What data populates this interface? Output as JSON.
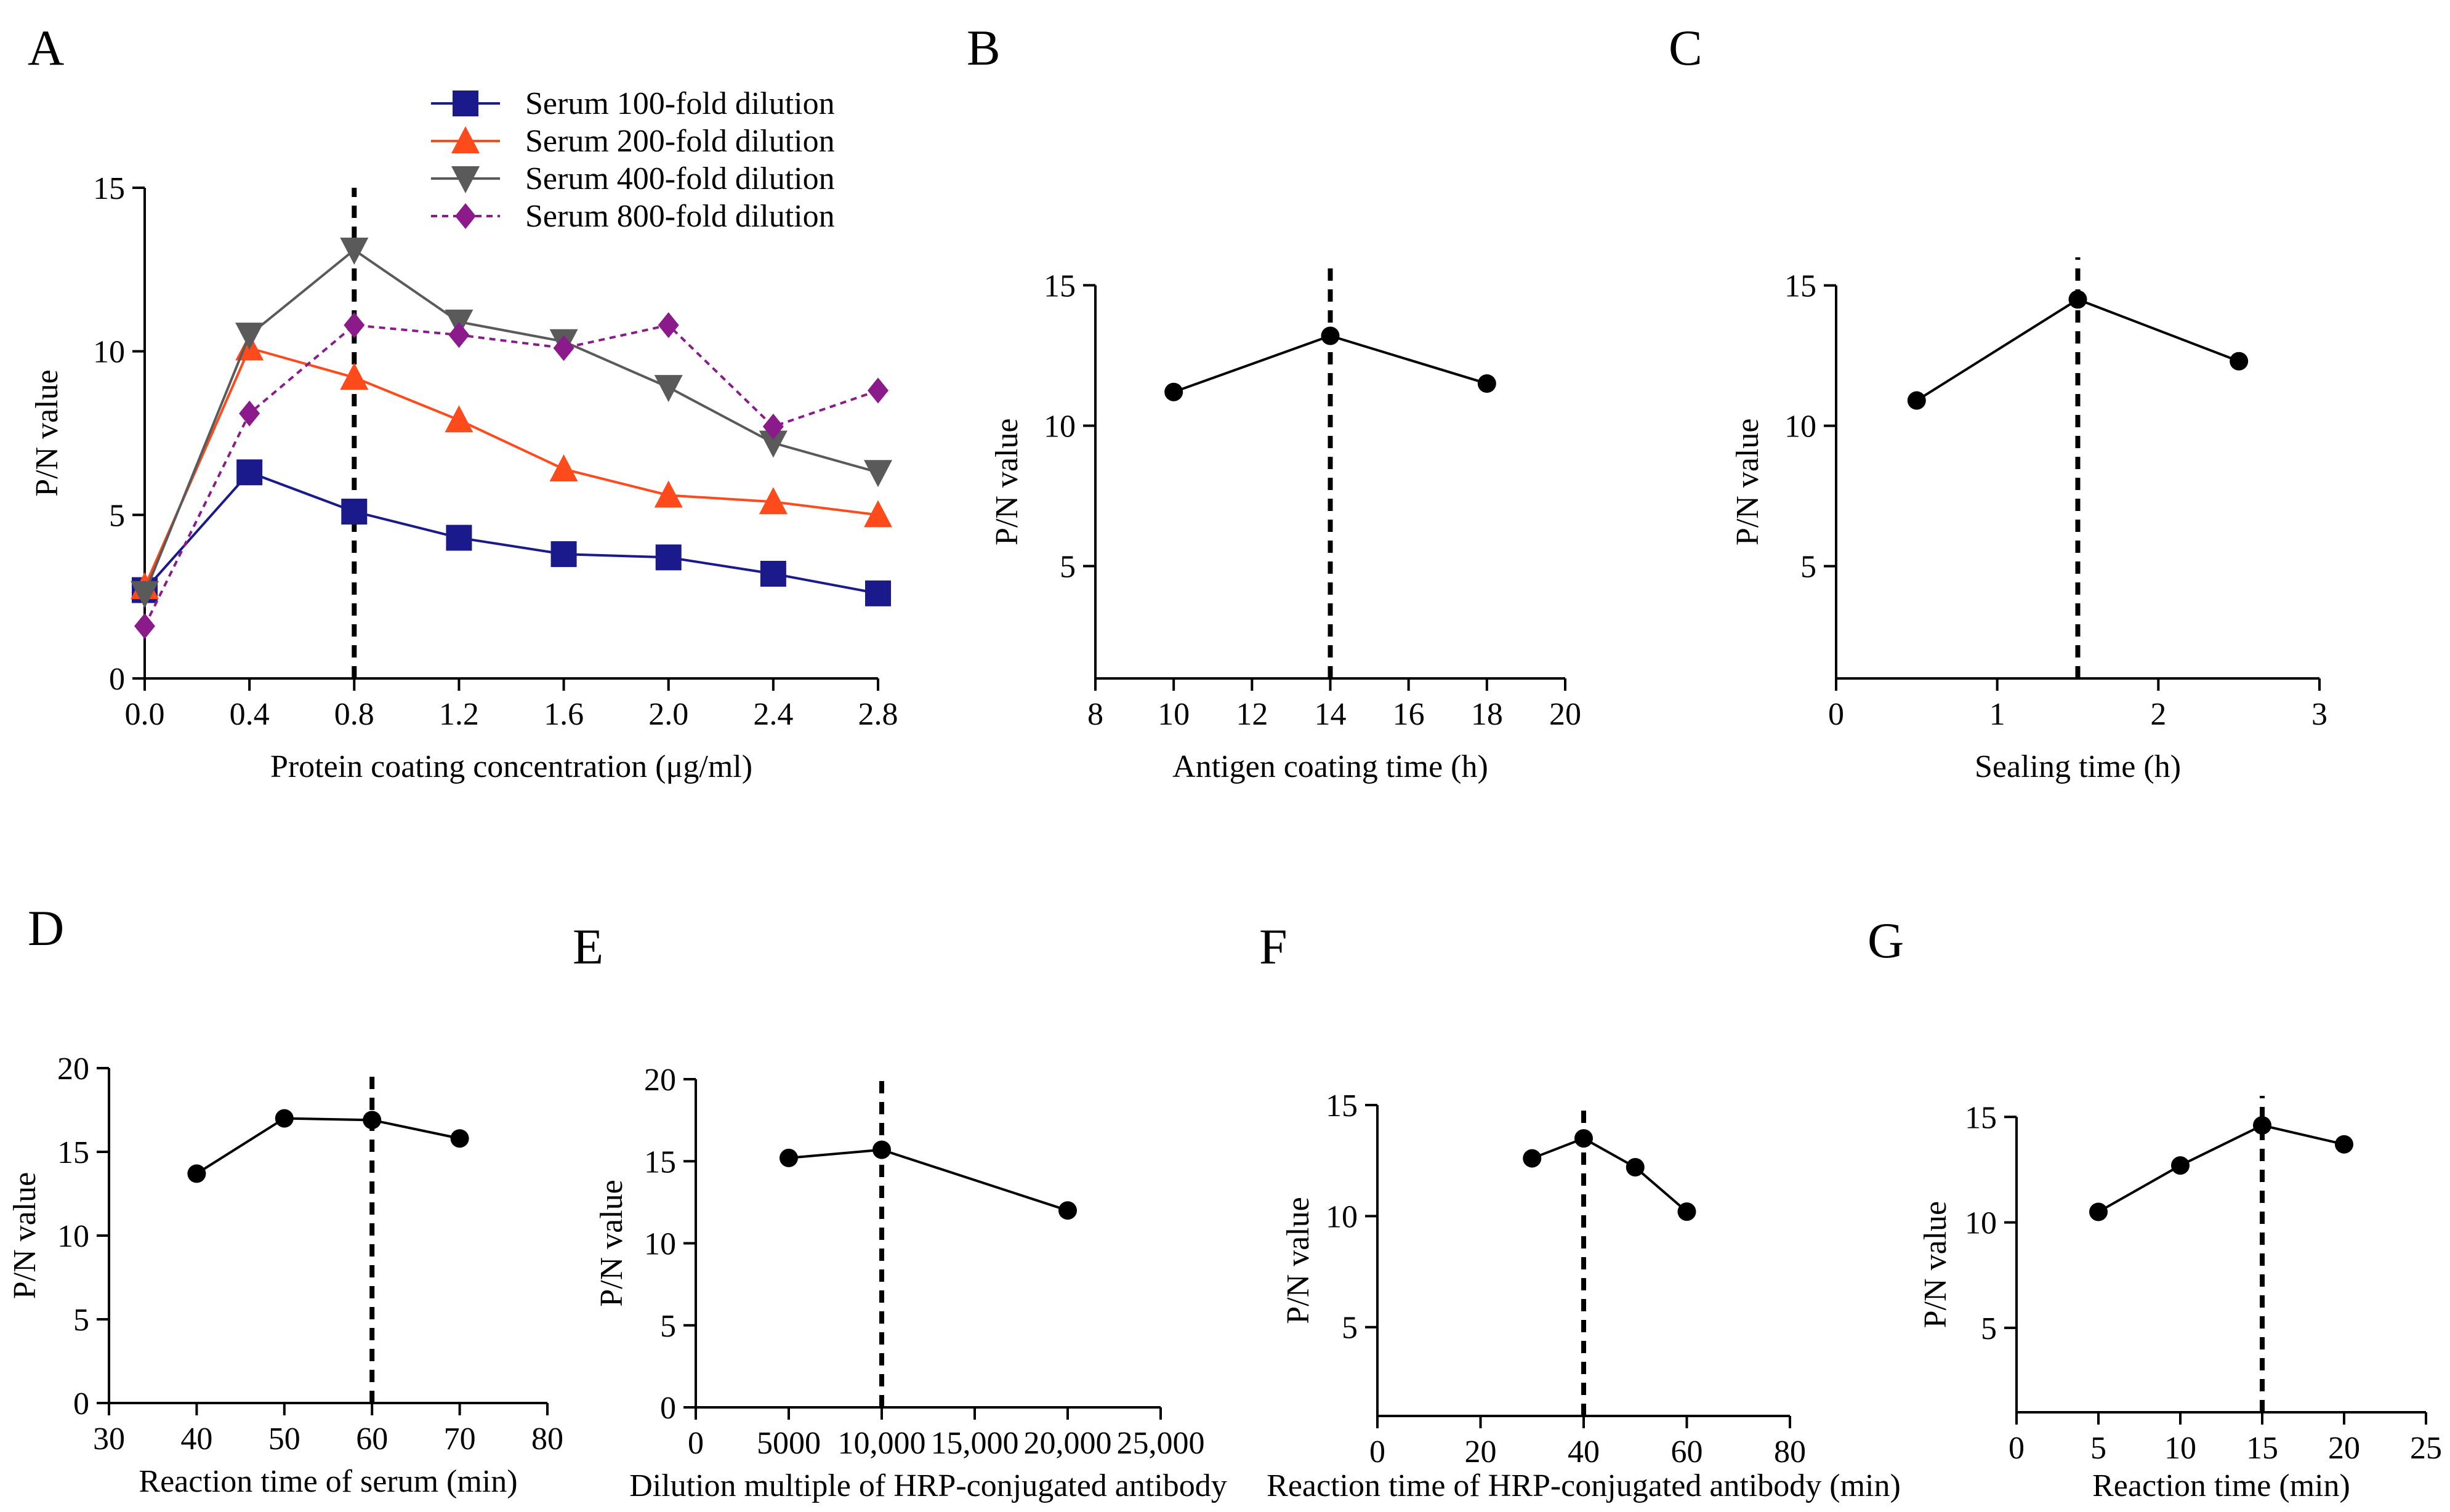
{
  "chart_data": [
    {
      "panel": "A",
      "type": "line",
      "xlabel": "Protein coating concentration (μg/ml)",
      "ylabel": "P/N value",
      "xlim": [
        0,
        2.8
      ],
      "ylim": [
        0,
        15
      ],
      "xticks": [
        0.0,
        0.4,
        0.8,
        1.2,
        1.6,
        2.0,
        2.4,
        2.8
      ],
      "xtick_labels": [
        "0.0",
        "0.4",
        "0.8",
        "1.2",
        "1.6",
        "2.0",
        "2.4",
        "2.8"
      ],
      "yticks": [
        0,
        5,
        10,
        15
      ],
      "ytick_labels": [
        "0",
        "5",
        "10",
        "15"
      ],
      "x": [
        0.0,
        0.4,
        0.8,
        1.2,
        1.6,
        2.0,
        2.4,
        2.8
      ],
      "series": [
        {
          "name": "Serum 100-fold dilution",
          "color": "#1a1a8c",
          "marker": "square",
          "dashed": false,
          "values": [
            2.7,
            6.3,
            5.1,
            4.3,
            3.8,
            3.7,
            3.2,
            2.6
          ]
        },
        {
          "name": "Serum 200-fold dilution",
          "color": "#ff4a1c",
          "marker": "triangle-up",
          "dashed": false,
          "values": [
            2.8,
            10.1,
            9.2,
            7.9,
            6.4,
            5.6,
            5.4,
            5.0
          ]
        },
        {
          "name": "Serum 400-fold dilution",
          "color": "#5a5a5a",
          "marker": "triangle-down",
          "dashed": false,
          "values": [
            2.6,
            10.5,
            13.1,
            10.9,
            10.3,
            8.9,
            7.2,
            6.3
          ]
        },
        {
          "name": "Serum 800-fold dilution",
          "color": "#8b1a8b",
          "marker": "diamond",
          "dashed": true,
          "values": [
            1.6,
            8.1,
            10.8,
            10.5,
            10.1,
            10.8,
            7.7,
            8.8
          ]
        }
      ],
      "vline_x": 0.8,
      "legend": "top"
    },
    {
      "panel": "B",
      "type": "line",
      "xlabel": "Antigen coating time (h)",
      "ylabel": "P/N  value",
      "xlim": [
        8,
        20
      ],
      "ylim": [
        1,
        15.6
      ],
      "xticks": [
        8,
        10,
        12,
        14,
        16,
        18,
        20
      ],
      "xtick_labels": [
        "8",
        "10",
        "12",
        "14",
        "16",
        "18",
        "20"
      ],
      "yticks": [
        5,
        10,
        15
      ],
      "ytick_labels": [
        "5",
        "10",
        "15"
      ],
      "x": [
        10,
        14,
        18
      ],
      "series": [
        {
          "name": "",
          "values": [
            11.2,
            13.2,
            11.5
          ]
        }
      ],
      "vline_x": 14
    },
    {
      "panel": "C",
      "type": "line",
      "xlabel": "Sealing time (h)",
      "ylabel": "P/N value",
      "xlim": [
        0,
        3
      ],
      "ylim": [
        1,
        16
      ],
      "xticks": [
        0,
        1,
        2,
        3
      ],
      "xtick_labels": [
        "0",
        "1",
        "2",
        "3"
      ],
      "yticks": [
        5,
        10,
        15
      ],
      "ytick_labels": [
        "5",
        "10",
        "15"
      ],
      "x": [
        0.5,
        1.5,
        2.5
      ],
      "series": [
        {
          "name": "",
          "values": [
            10.9,
            14.5,
            12.3
          ]
        }
      ],
      "vline_x": 1.5
    },
    {
      "panel": "D",
      "type": "line",
      "xlabel": "Reaction time of serum (min)",
      "ylabel": "P/N value",
      "xlim": [
        30,
        80
      ],
      "ylim": [
        0,
        20
      ],
      "xticks": [
        30,
        40,
        50,
        60,
        70,
        80
      ],
      "xtick_labels": [
        "30",
        "40",
        "50",
        "60",
        "70",
        "80"
      ],
      "yticks": [
        0,
        5,
        10,
        15,
        20
      ],
      "ytick_labels": [
        "0",
        "5",
        "10",
        "15",
        "20"
      ],
      "x": [
        40,
        50,
        60,
        70
      ],
      "series": [
        {
          "name": "",
          "values": [
            13.7,
            17.0,
            16.9,
            15.8
          ]
        }
      ],
      "vline_x": 60
    },
    {
      "panel": "E",
      "type": "line",
      "xlabel": "Dilution multiple of HRP-conjugated antibody",
      "ylabel": "P/N value",
      "xlim": [
        0,
        25000
      ],
      "ylim": [
        0,
        20
      ],
      "xticks": [
        0,
        5000,
        10000,
        15000,
        20000,
        25000
      ],
      "xtick_labels": [
        "0",
        "5000",
        "10,000",
        "15,000",
        "20,000",
        "25,000"
      ],
      "yticks": [
        0,
        5,
        10,
        15,
        20
      ],
      "ytick_labels": [
        "0",
        "5",
        "10",
        "15",
        "20"
      ],
      "x": [
        5000,
        10000,
        20000
      ],
      "series": [
        {
          "name": "",
          "values": [
            15.2,
            15.7,
            12.0
          ]
        }
      ],
      "vline_x": 10000
    },
    {
      "panel": "F",
      "type": "line",
      "xlabel": "Reaction time of HRP-conjugated antibody (min)",
      "ylabel": "P/N value",
      "xlim": [
        0,
        80
      ],
      "ylim": [
        1,
        15
      ],
      "xticks": [
        0,
        20,
        40,
        60,
        80
      ],
      "xtick_labels": [
        "0",
        "20",
        "40",
        "60",
        "80"
      ],
      "yticks": [
        5,
        10,
        15
      ],
      "ytick_labels": [
        "5",
        "10",
        "15"
      ],
      "x": [
        30,
        40,
        50,
        60
      ],
      "series": [
        {
          "name": "",
          "values": [
            12.6,
            13.5,
            12.2,
            10.2
          ]
        }
      ],
      "vline_x": 40
    },
    {
      "panel": "G",
      "type": "line",
      "xlabel": "Reaction time (min)",
      "ylabel": "P/N value",
      "xlim": [
        0,
        25
      ],
      "ylim": [
        1,
        16
      ],
      "xticks": [
        0,
        5,
        10,
        15,
        20,
        25
      ],
      "xtick_labels": [
        "0",
        "5",
        "10",
        "15",
        "20",
        "25"
      ],
      "yticks": [
        5,
        10,
        15
      ],
      "ytick_labels": [
        "5",
        "10",
        "15"
      ],
      "x": [
        5,
        10,
        15,
        20
      ],
      "series": [
        {
          "name": "",
          "values": [
            10.5,
            12.7,
            14.6,
            13.7
          ]
        }
      ],
      "vline_x": 15
    }
  ]
}
